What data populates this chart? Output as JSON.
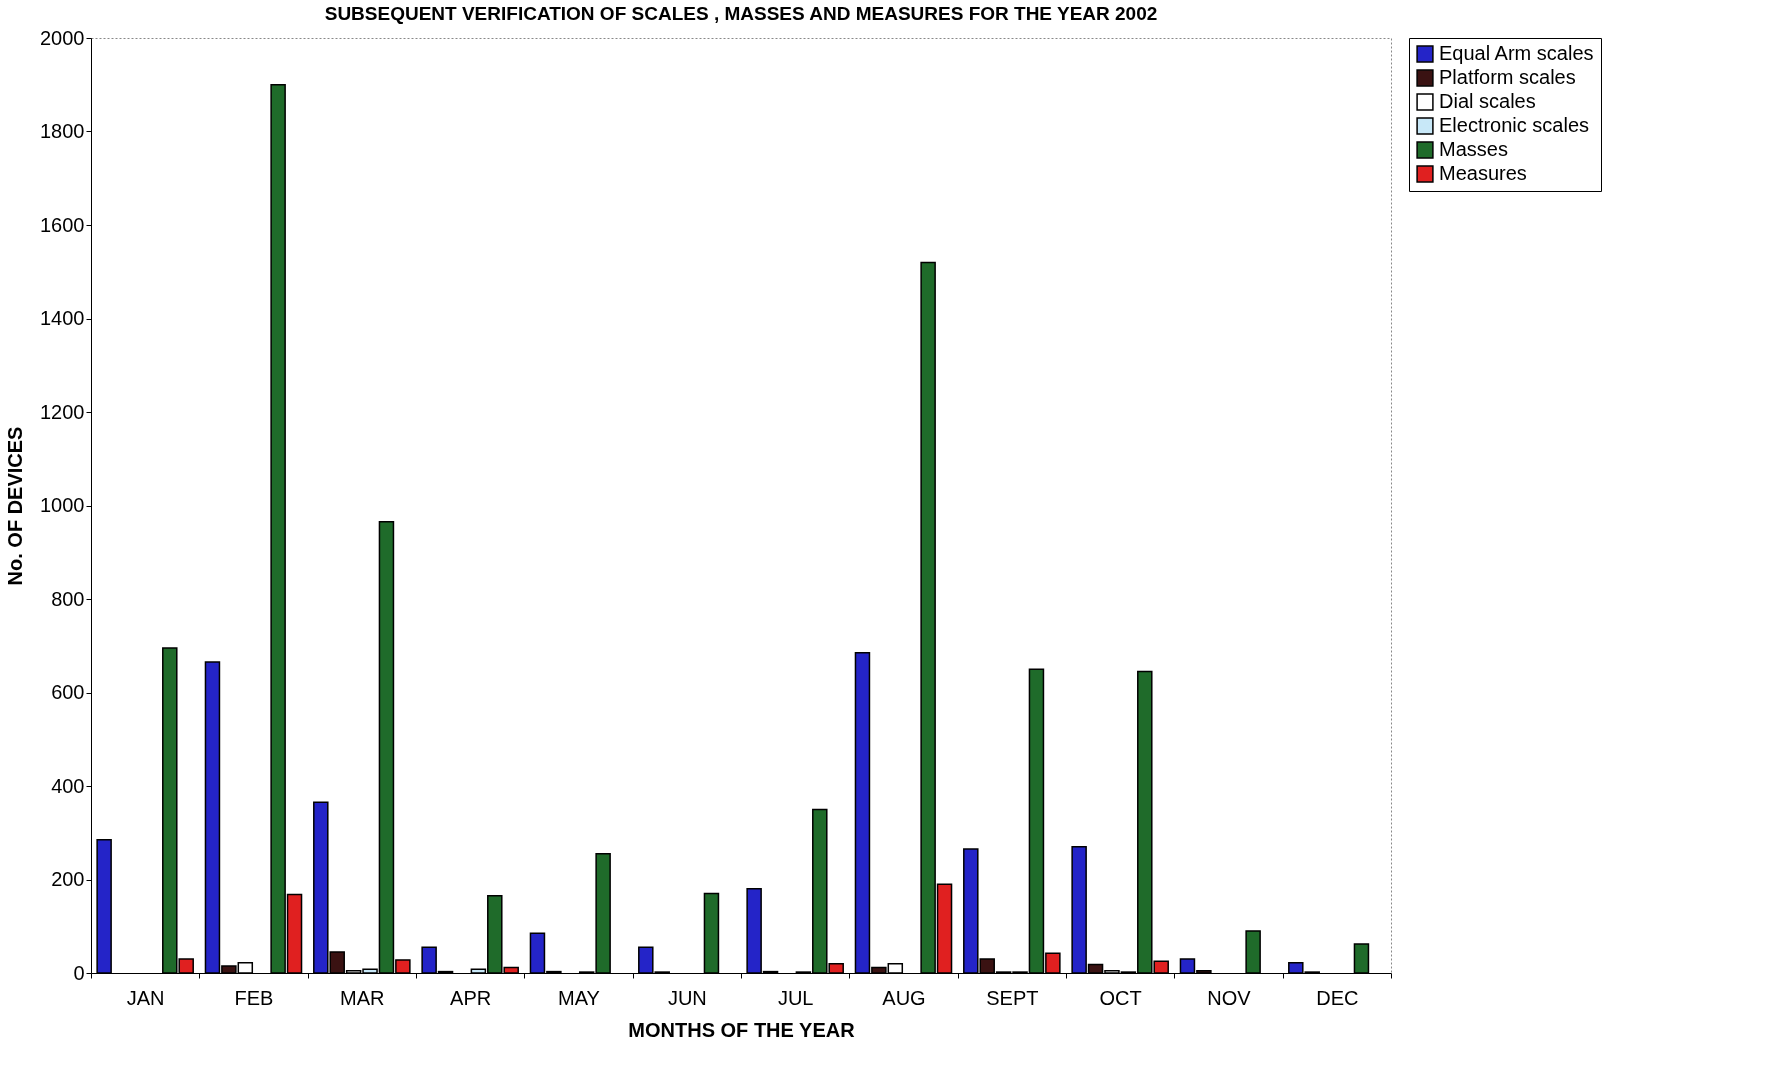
{
  "chart_data": {
    "type": "bar",
    "title": "SUBSEQUENT VERIFICATION OF SCALES , MASSES AND MEASURES  FOR THE YEAR 2002",
    "xlabel": "MONTHS OF THE YEAR",
    "ylabel": "No. OF DEVICES",
    "categories": [
      "JAN",
      "FEB",
      "MAR",
      "APR",
      "MAY",
      "JUN",
      "JUL",
      "AUG",
      "SEPT",
      "OCT",
      "NOV",
      "DEC"
    ],
    "series": [
      {
        "name": "Equal Arm scales",
        "color": "#2424c8",
        "values": [
          285,
          665,
          365,
          55,
          85,
          55,
          180,
          685,
          265,
          270,
          30,
          22
        ]
      },
      {
        "name": "Platform scales",
        "color": "#3a1212",
        "values": [
          null,
          15,
          45,
          3,
          3,
          2,
          3,
          12,
          30,
          18,
          5,
          2
        ]
      },
      {
        "name": "Dial scales",
        "color": "#ffffff",
        "values": [
          null,
          22,
          5,
          null,
          null,
          null,
          null,
          20,
          2,
          5,
          null,
          null
        ]
      },
      {
        "name": "Electronic scales",
        "color": "#c8e8f8",
        "values": [
          null,
          null,
          8,
          8,
          2,
          null,
          2,
          null,
          2,
          2,
          null,
          null
        ]
      },
      {
        "name": "Masses",
        "color": "#1f6b2a",
        "values": [
          695,
          1900,
          965,
          165,
          255,
          170,
          350,
          1520,
          650,
          645,
          90,
          62
        ]
      },
      {
        "name": "Measures",
        "color": "#e02020",
        "values": [
          30,
          168,
          28,
          12,
          null,
          null,
          20,
          190,
          42,
          25,
          null,
          null
        ]
      }
    ],
    "ylim": [
      0,
      2000
    ],
    "yticks": [
      0,
      200,
      400,
      600,
      800,
      1000,
      1200,
      1400,
      1600,
      1800,
      2000
    ],
    "grid": false,
    "legend": "right"
  }
}
